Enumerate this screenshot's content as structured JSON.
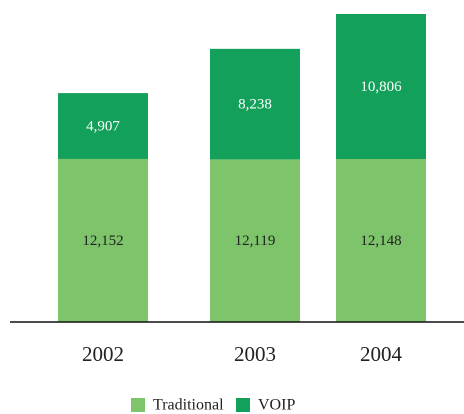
{
  "chart_data": {
    "type": "stacked_bar",
    "categories": [
      "2002",
      "2003",
      "2004"
    ],
    "series": [
      {
        "name": "Traditional",
        "color": "#7dc46a",
        "values": [
          12152,
          12119,
          12148
        ],
        "value_labels": [
          "12,152",
          "12,119",
          "12,148"
        ]
      },
      {
        "name": "VOIP",
        "color": "#12a05a",
        "values": [
          4907,
          8238,
          10806
        ],
        "value_labels": [
          "4,907",
          "8,238",
          "10,806"
        ]
      }
    ]
  }
}
